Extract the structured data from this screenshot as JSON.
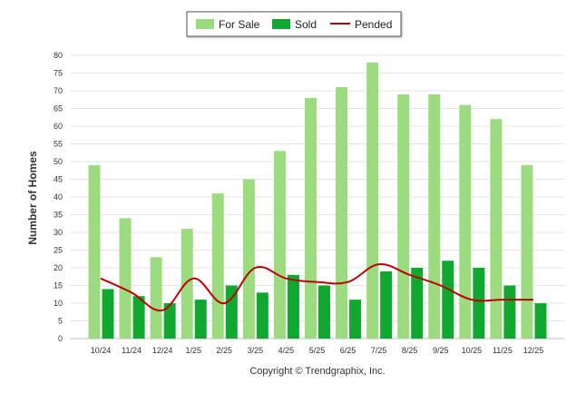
{
  "chart_data": {
    "type": "bar",
    "title": "",
    "xlabel": "",
    "ylabel": "Number of Homes",
    "ylim": [
      0,
      80
    ],
    "ytick_step": 5,
    "grid": true,
    "legend_position": "top-center",
    "categories": [
      "10/24",
      "11/24",
      "12/24",
      "1/25",
      "2/25",
      "3/25",
      "4/25",
      "5/25",
      "6/25",
      "7/25",
      "8/25",
      "9/25",
      "10/25",
      "11/25",
      "12/25"
    ],
    "series": [
      {
        "name": "For Sale",
        "kind": "bar",
        "color": "#9ddb80",
        "values": [
          49,
          34,
          23,
          31,
          41,
          45,
          53,
          68,
          71,
          78,
          69,
          69,
          66,
          62,
          49
        ]
      },
      {
        "name": "Sold",
        "kind": "bar",
        "color": "#11a831",
        "values": [
          14,
          12,
          10,
          11,
          15,
          13,
          18,
          15,
          11,
          19,
          20,
          22,
          20,
          15,
          10
        ]
      },
      {
        "name": "Pended",
        "kind": "line",
        "color": "#c00000",
        "values": [
          17,
          13,
          8,
          17,
          10,
          20,
          17,
          16,
          16,
          21,
          18,
          15,
          11,
          11,
          11
        ]
      }
    ],
    "footer": "Copyright © Trendgraphix, Inc."
  }
}
